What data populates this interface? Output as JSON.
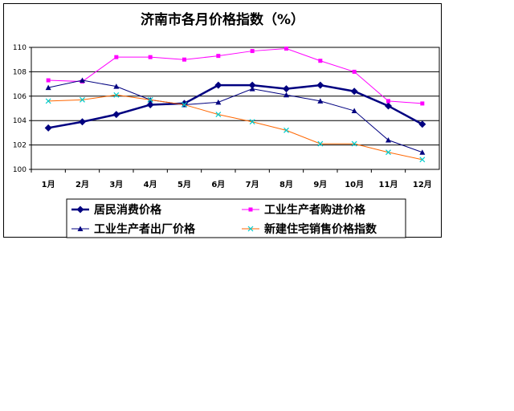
{
  "chart_data": {
    "type": "line",
    "title": "济南市各月价格指数（%）",
    "xlabel": "",
    "ylabel": "",
    "categories": [
      "1月",
      "2月",
      "3月",
      "4月",
      "5月",
      "6月",
      "7月",
      "8月",
      "9月",
      "10月",
      "11月",
      "12月"
    ],
    "ylim": [
      100,
      110
    ],
    "yticks": [
      100,
      102,
      104,
      106,
      108,
      110
    ],
    "grid": true,
    "legend_position": "bottom",
    "series": [
      {
        "name": "居民消费价格",
        "color": "#000080",
        "marker": "diamond",
        "values": [
          103.4,
          103.9,
          104.5,
          105.3,
          105.4,
          106.9,
          106.9,
          106.6,
          106.9,
          106.4,
          105.2,
          103.7
        ]
      },
      {
        "name": "工业生产者购进价格",
        "color": "#ff00ff",
        "marker": "square",
        "values": [
          107.3,
          107.2,
          109.2,
          109.2,
          109.0,
          109.3,
          109.7,
          109.9,
          108.9,
          108.0,
          105.6,
          105.4
        ]
      },
      {
        "name": "工业生产者出厂价格",
        "color": "#000080",
        "marker": "triangle",
        "values": [
          106.7,
          107.3,
          106.8,
          105.7,
          105.3,
          105.5,
          106.6,
          106.1,
          105.6,
          104.8,
          102.4,
          101.4
        ]
      },
      {
        "name": "新建住宅销售价格指数",
        "color": "#00cccc",
        "marker": "x",
        "values": [
          105.6,
          105.7,
          106.1,
          105.7,
          105.3,
          104.5,
          103.9,
          103.2,
          102.1,
          102.1,
          101.4,
          100.8
        ]
      }
    ]
  }
}
